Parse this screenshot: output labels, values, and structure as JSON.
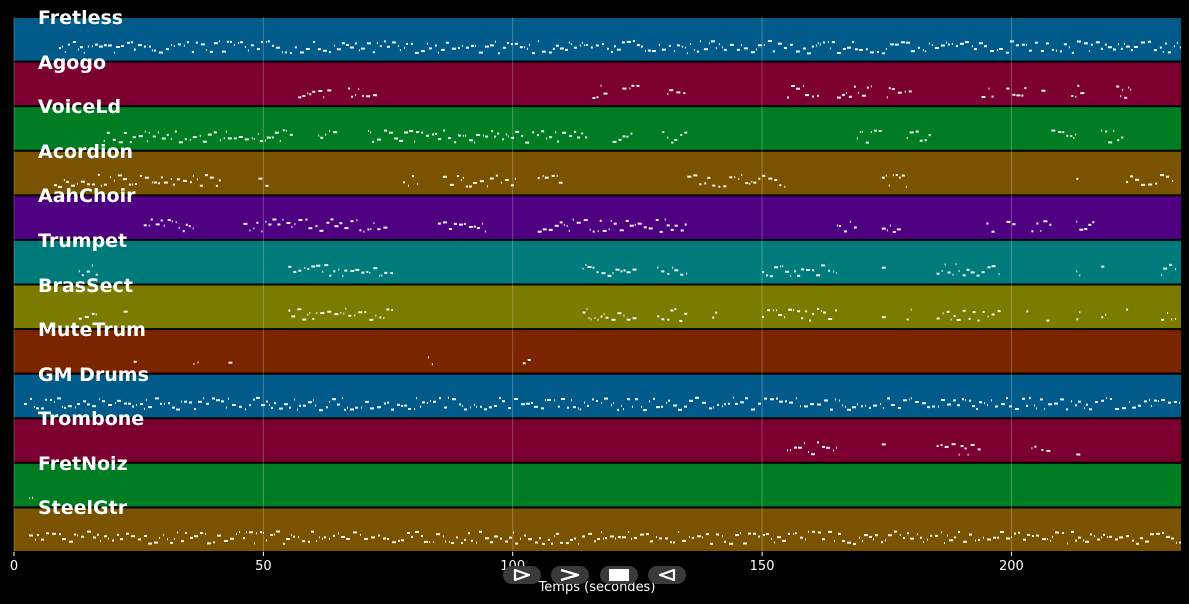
{
  "axis": {
    "xlabel": "Temps (secondes)",
    "ticks": [
      0,
      50,
      100,
      150,
      200
    ],
    "xlim": [
      0,
      234
    ]
  },
  "tracks": [
    {
      "label": "Fretless",
      "color": "#005b8a"
    },
    {
      "label": "Agogo",
      "color": "#7b0030"
    },
    {
      "label": "VoiceLd",
      "color": "#007d22"
    },
    {
      "label": "Acordion",
      "color": "#7a5300"
    },
    {
      "label": "AahChoir",
      "color": "#4f0080"
    },
    {
      "label": "Trumpet",
      "color": "#007b7b"
    },
    {
      "label": "BrasSect",
      "color": "#7b7b00"
    },
    {
      "label": "MuteTrum",
      "color": "#7a2400"
    },
    {
      "label": "GM Drums",
      "color": "#005b8a"
    },
    {
      "label": "Trombone",
      "color": "#7b0030"
    },
    {
      "label": "FretNoiz",
      "color": "#007d22"
    },
    {
      "label": "SteelGtr",
      "color": "#7a5300"
    }
  ],
  "controls": [
    {
      "name": "play-button",
      "icon": "play-outline-icon"
    },
    {
      "name": "forward-button",
      "icon": "chevron-right-icon"
    },
    {
      "name": "stop-button",
      "icon": "stop-icon"
    },
    {
      "name": "rewind-button",
      "icon": "play-reverse-icon"
    }
  ],
  "note_activity": [
    [
      [
        9,
        234
      ]
    ],
    [
      [
        57,
        64
      ],
      [
        67,
        73
      ],
      [
        116,
        119
      ],
      [
        122,
        126
      ],
      [
        131,
        135
      ],
      [
        155,
        162
      ],
      [
        165,
        172
      ],
      [
        175,
        180
      ],
      [
        194,
        197
      ],
      [
        199,
        203
      ],
      [
        206,
        207
      ],
      [
        212,
        215
      ],
      [
        221,
        224
      ]
    ],
    [
      [
        18,
        56
      ],
      [
        61,
        65
      ],
      [
        71,
        115
      ],
      [
        120,
        124
      ],
      [
        130,
        135
      ],
      [
        169,
        174
      ],
      [
        179,
        184
      ],
      [
        208,
        213
      ],
      [
        218,
        223
      ]
    ],
    [
      [
        8,
        42
      ],
      [
        49,
        51
      ],
      [
        78,
        81
      ],
      [
        86,
        101
      ],
      [
        105,
        110
      ],
      [
        135,
        155
      ],
      [
        174,
        179
      ],
      [
        213,
        214
      ],
      [
        223,
        233
      ]
    ],
    [
      [
        26,
        36
      ],
      [
        46,
        75
      ],
      [
        85,
        95
      ],
      [
        105,
        135
      ],
      [
        165,
        169
      ],
      [
        174,
        178
      ],
      [
        195,
        197
      ],
      [
        199,
        201
      ],
      [
        204,
        208
      ],
      [
        213,
        217
      ]
    ],
    [
      [
        13,
        17
      ],
      [
        55,
        76
      ],
      [
        114,
        125
      ],
      [
        129,
        135
      ],
      [
        150,
        165
      ],
      [
        174,
        175
      ],
      [
        185,
        198
      ],
      [
        213,
        214
      ],
      [
        218,
        219
      ],
      [
        230,
        233
      ]
    ],
    [
      [
        13,
        17
      ],
      [
        22,
        23
      ],
      [
        55,
        76
      ],
      [
        114,
        125
      ],
      [
        129,
        135
      ],
      [
        140,
        141
      ],
      [
        150,
        165
      ],
      [
        174,
        175
      ],
      [
        179,
        180
      ],
      [
        185,
        198
      ],
      [
        203,
        204
      ],
      [
        207,
        208
      ],
      [
        213,
        214
      ],
      [
        218,
        219
      ],
      [
        223,
        224
      ],
      [
        230,
        233
      ]
    ],
    [
      [
        24,
        25
      ],
      [
        36,
        37
      ],
      [
        43,
        44
      ],
      [
        83,
        84
      ],
      [
        102,
        104
      ]
    ],
    [
      [
        2,
        234
      ]
    ],
    [
      [
        155,
        165
      ],
      [
        174,
        175
      ],
      [
        185,
        194
      ],
      [
        204,
        205
      ],
      [
        206,
        208
      ],
      [
        213,
        214
      ]
    ],
    [
      [
        3,
        4
      ]
    ],
    [
      [
        3,
        234
      ]
    ]
  ]
}
